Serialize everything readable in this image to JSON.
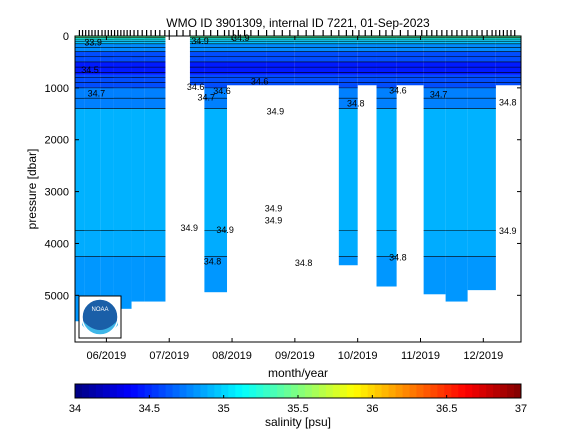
{
  "chart_data": {
    "type": "heatmap",
    "title": "WMO ID 3901309, internal ID 7221, 01-Sep-2023",
    "xlabel": "month/year",
    "ylabel": "pressure [dbar]",
    "x_tick_labels": [
      "06/2019",
      "07/2019",
      "08/2019",
      "09/2019",
      "10/2019",
      "11/2019",
      "12/2019"
    ],
    "x_ticks_month": [
      6.0,
      7.0,
      8.0,
      9.0,
      10.0,
      11.0,
      12.0
    ],
    "xlim_month": [
      5.5,
      12.6
    ],
    "ylim": [
      5900,
      0
    ],
    "y_reversed": true,
    "y_ticks": [
      0,
      1000,
      2000,
      3000,
      4000,
      5000
    ],
    "grid": false,
    "colorbar": {
      "label": "salinity [psu]",
      "range": [
        34,
        37
      ],
      "ticks": [
        34,
        34.5,
        35,
        35.5,
        36,
        36.5,
        37
      ],
      "colormap": "jet"
    },
    "profiles_month": [
      5.57,
      5.62,
      5.67,
      5.72,
      5.77,
      5.82,
      5.87,
      5.93,
      5.98,
      6.03,
      6.08,
      6.13,
      6.18,
      6.23,
      6.28,
      6.33,
      6.38,
      6.44,
      6.5,
      6.57,
      6.64,
      6.71,
      6.78,
      6.85,
      6.93,
      7.0,
      7.12,
      7.22,
      7.33,
      7.43,
      7.55,
      7.66,
      7.77,
      7.88,
      7.95,
      8.02,
      8.1,
      8.2,
      8.3,
      8.42,
      8.55,
      8.67,
      8.8,
      8.92,
      9.05,
      9.18,
      9.3,
      9.45,
      9.58,
      9.7,
      9.82,
      9.92,
      10.02,
      10.12,
      10.22,
      10.35,
      10.45,
      10.55,
      10.68,
      10.8,
      10.92,
      11.02,
      11.1,
      11.18,
      11.26,
      11.34,
      11.42,
      11.5,
      11.58,
      11.66,
      11.74,
      11.82,
      11.9,
      11.98,
      12.06,
      12.14,
      12.2,
      12.26,
      12.32,
      12.38,
      12.44,
      12.5
    ],
    "data_segments": [
      {
        "x_start": 5.5,
        "x_end": 5.65,
        "max_depth": 5500
      },
      {
        "x_start": 5.65,
        "x_end": 5.9,
        "max_depth": 5420
      },
      {
        "x_start": 5.9,
        "x_end": 6.12,
        "max_depth": 5380
      },
      {
        "x_start": 6.12,
        "x_end": 6.4,
        "max_depth": 5260
      },
      {
        "x_start": 6.4,
        "x_end": 6.6,
        "max_depth": 5120
      },
      {
        "x_start": 6.6,
        "x_end": 6.94,
        "max_depth": 5120
      },
      {
        "x_start": 7.33,
        "x_end": 7.56,
        "max_depth": 950
      },
      {
        "x_start": 7.56,
        "x_end": 7.92,
        "max_depth": 4940
      },
      {
        "x_start": 7.92,
        "x_end": 8.55,
        "max_depth": 950
      },
      {
        "x_start": 8.55,
        "x_end": 9.0,
        "max_depth": 950
      },
      {
        "x_start": 9.0,
        "x_end": 9.7,
        "max_depth": 950
      },
      {
        "x_start": 9.7,
        "x_end": 10.0,
        "max_depth": 4420
      },
      {
        "x_start": 10.0,
        "x_end": 10.3,
        "max_depth": 950
      },
      {
        "x_start": 10.3,
        "x_end": 10.62,
        "max_depth": 4830
      },
      {
        "x_start": 10.62,
        "x_end": 11.05,
        "max_depth": 950
      },
      {
        "x_start": 11.05,
        "x_end": 11.4,
        "max_depth": 4980
      },
      {
        "x_start": 11.4,
        "x_end": 11.75,
        "max_depth": 5120
      },
      {
        "x_start": 11.75,
        "x_end": 12.2,
        "max_depth": 4900
      },
      {
        "x_start": 12.2,
        "x_end": 12.6,
        "max_depth": 950
      }
    ],
    "salinity_layers": [
      {
        "top": 0,
        "bottom": 40,
        "psu": 35.4
      },
      {
        "top": 40,
        "bottom": 80,
        "psu": 35.15
      },
      {
        "top": 80,
        "bottom": 150,
        "psu": 34.95
      },
      {
        "top": 150,
        "bottom": 300,
        "psu": 34.78
      },
      {
        "top": 300,
        "bottom": 500,
        "psu": 34.6
      },
      {
        "top": 500,
        "bottom": 750,
        "psu": 34.45
      },
      {
        "top": 750,
        "bottom": 1000,
        "psu": 34.6
      },
      {
        "top": 1000,
        "bottom": 1400,
        "psu": 34.75
      },
      {
        "top": 1400,
        "bottom": 3750,
        "psu": 34.9
      },
      {
        "top": 3750,
        "bottom": 4250,
        "psu": 34.88
      },
      {
        "top": 4250,
        "bottom": 5600,
        "psu": 34.82
      }
    ],
    "contour_depths": [
      30,
      60,
      100,
      150,
      220,
      300,
      400,
      500,
      600,
      700,
      800,
      900,
      1000,
      1200,
      1400,
      3750,
      4250
    ],
    "contour_labels": [
      {
        "text": "33.9",
        "month": 5.65,
        "depth": 130
      },
      {
        "text": "34.5",
        "month": 5.6,
        "depth": 660
      },
      {
        "text": "34.7",
        "month": 5.7,
        "depth": 1110
      },
      {
        "text": "34.9",
        "month": 7.18,
        "depth": 3700
      },
      {
        "text": "34.6",
        "month": 7.28,
        "depth": 980
      },
      {
        "text": "34.7",
        "month": 7.45,
        "depth": 1190
      },
      {
        "text": "34.6",
        "month": 7.7,
        "depth": 1060
      },
      {
        "text": "34.9",
        "month": 7.75,
        "depth": 3740
      },
      {
        "text": "34.8",
        "month": 7.55,
        "depth": 4350
      },
      {
        "text": "34.6",
        "month": 8.3,
        "depth": 880
      },
      {
        "text": "34.9",
        "month": 8.55,
        "depth": 1460
      },
      {
        "text": "34.9",
        "month": 8.52,
        "depth": 3330
      },
      {
        "text": "34.9",
        "month": 8.52,
        "depth": 3560
      },
      {
        "text": "34.8",
        "month": 9.0,
        "depth": 4380
      },
      {
        "text": "34.8",
        "month": 9.83,
        "depth": 1300
      },
      {
        "text": "34.6",
        "month": 10.5,
        "depth": 1050
      },
      {
        "text": "34.8",
        "month": 10.5,
        "depth": 4270
      },
      {
        "text": "34.7",
        "month": 11.15,
        "depth": 1130
      },
      {
        "text": "34.8",
        "month": 12.25,
        "depth": 1280
      },
      {
        "text": "34.9",
        "month": 12.25,
        "depth": 3760
      },
      {
        "text": "34.9",
        "month": 8.0,
        "depth": 40
      },
      {
        "text": "34.9",
        "month": 7.35,
        "depth": 100
      }
    ]
  },
  "logo": {
    "text": "NOAA",
    "name": "noaa-logo"
  },
  "colors": {
    "background": "#ffffff",
    "axes": "#000000",
    "contour": "#000000"
  }
}
